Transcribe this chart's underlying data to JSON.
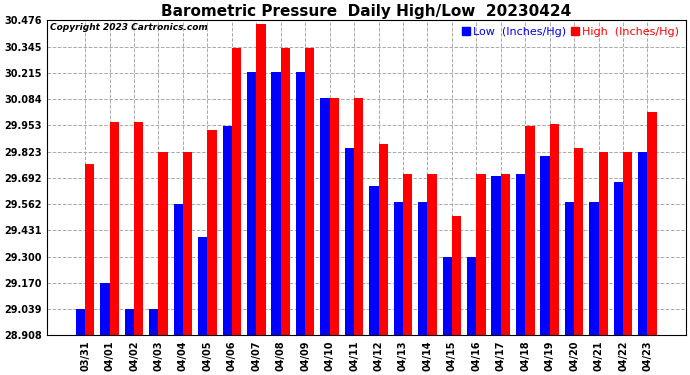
{
  "title": "Barometric Pressure  Daily High/Low  20230424",
  "copyright": "Copyright 2023 Cartronics.com",
  "legend_low": "Low  (Inches/Hg)",
  "legend_high": "High  (Inches/Hg)",
  "background_color": "#ffffff",
  "yticks": [
    28.908,
    29.039,
    29.17,
    29.3,
    29.431,
    29.562,
    29.692,
    29.823,
    29.953,
    30.084,
    30.215,
    30.345,
    30.476
  ],
  "ylim": [
    28.908,
    30.476
  ],
  "dates": [
    "03/31",
    "04/01",
    "04/02",
    "04/03",
    "04/04",
    "04/05",
    "04/06",
    "04/07",
    "04/08",
    "04/09",
    "04/10",
    "04/11",
    "04/12",
    "04/13",
    "04/14",
    "04/15",
    "04/16",
    "04/17",
    "04/18",
    "04/19",
    "04/20",
    "04/21",
    "04/22",
    "04/23"
  ],
  "high_values": [
    29.76,
    29.97,
    29.97,
    29.82,
    29.82,
    29.93,
    30.34,
    30.46,
    30.34,
    30.34,
    30.09,
    30.09,
    29.86,
    29.71,
    29.71,
    29.5,
    29.71,
    29.71,
    29.95,
    29.96,
    29.84,
    29.82,
    29.82,
    30.02
  ],
  "low_values": [
    29.04,
    29.17,
    29.04,
    29.04,
    29.56,
    29.4,
    29.95,
    30.22,
    30.22,
    30.22,
    30.09,
    29.84,
    29.65,
    29.57,
    29.57,
    29.3,
    29.3,
    29.7,
    29.71,
    29.8,
    29.57,
    29.57,
    29.67,
    29.82
  ],
  "bar_width": 0.38,
  "high_color": "#ff0000",
  "low_color": "#0000ff",
  "grid_color": "#aaaaaa",
  "title_fontsize": 11,
  "tick_fontsize": 7,
  "legend_fontsize": 8,
  "copyright_fontsize": 6.5
}
